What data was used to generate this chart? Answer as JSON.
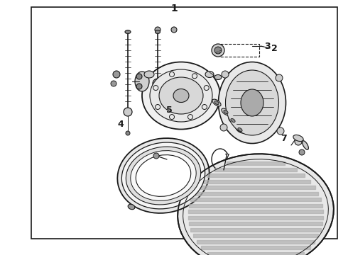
{
  "bg_color": "#ffffff",
  "line_color": "#1a1a1a",
  "border_color": "#1a1a1a",
  "label_1": "1",
  "label_2": "2",
  "label_3": "3",
  "label_4": "4",
  "label_5": "5",
  "font_size_labels": 10,
  "figsize": [
    4.9,
    3.6
  ],
  "dpi": 100,
  "border": [
    0.09,
    0.03,
    0.88,
    0.91
  ]
}
